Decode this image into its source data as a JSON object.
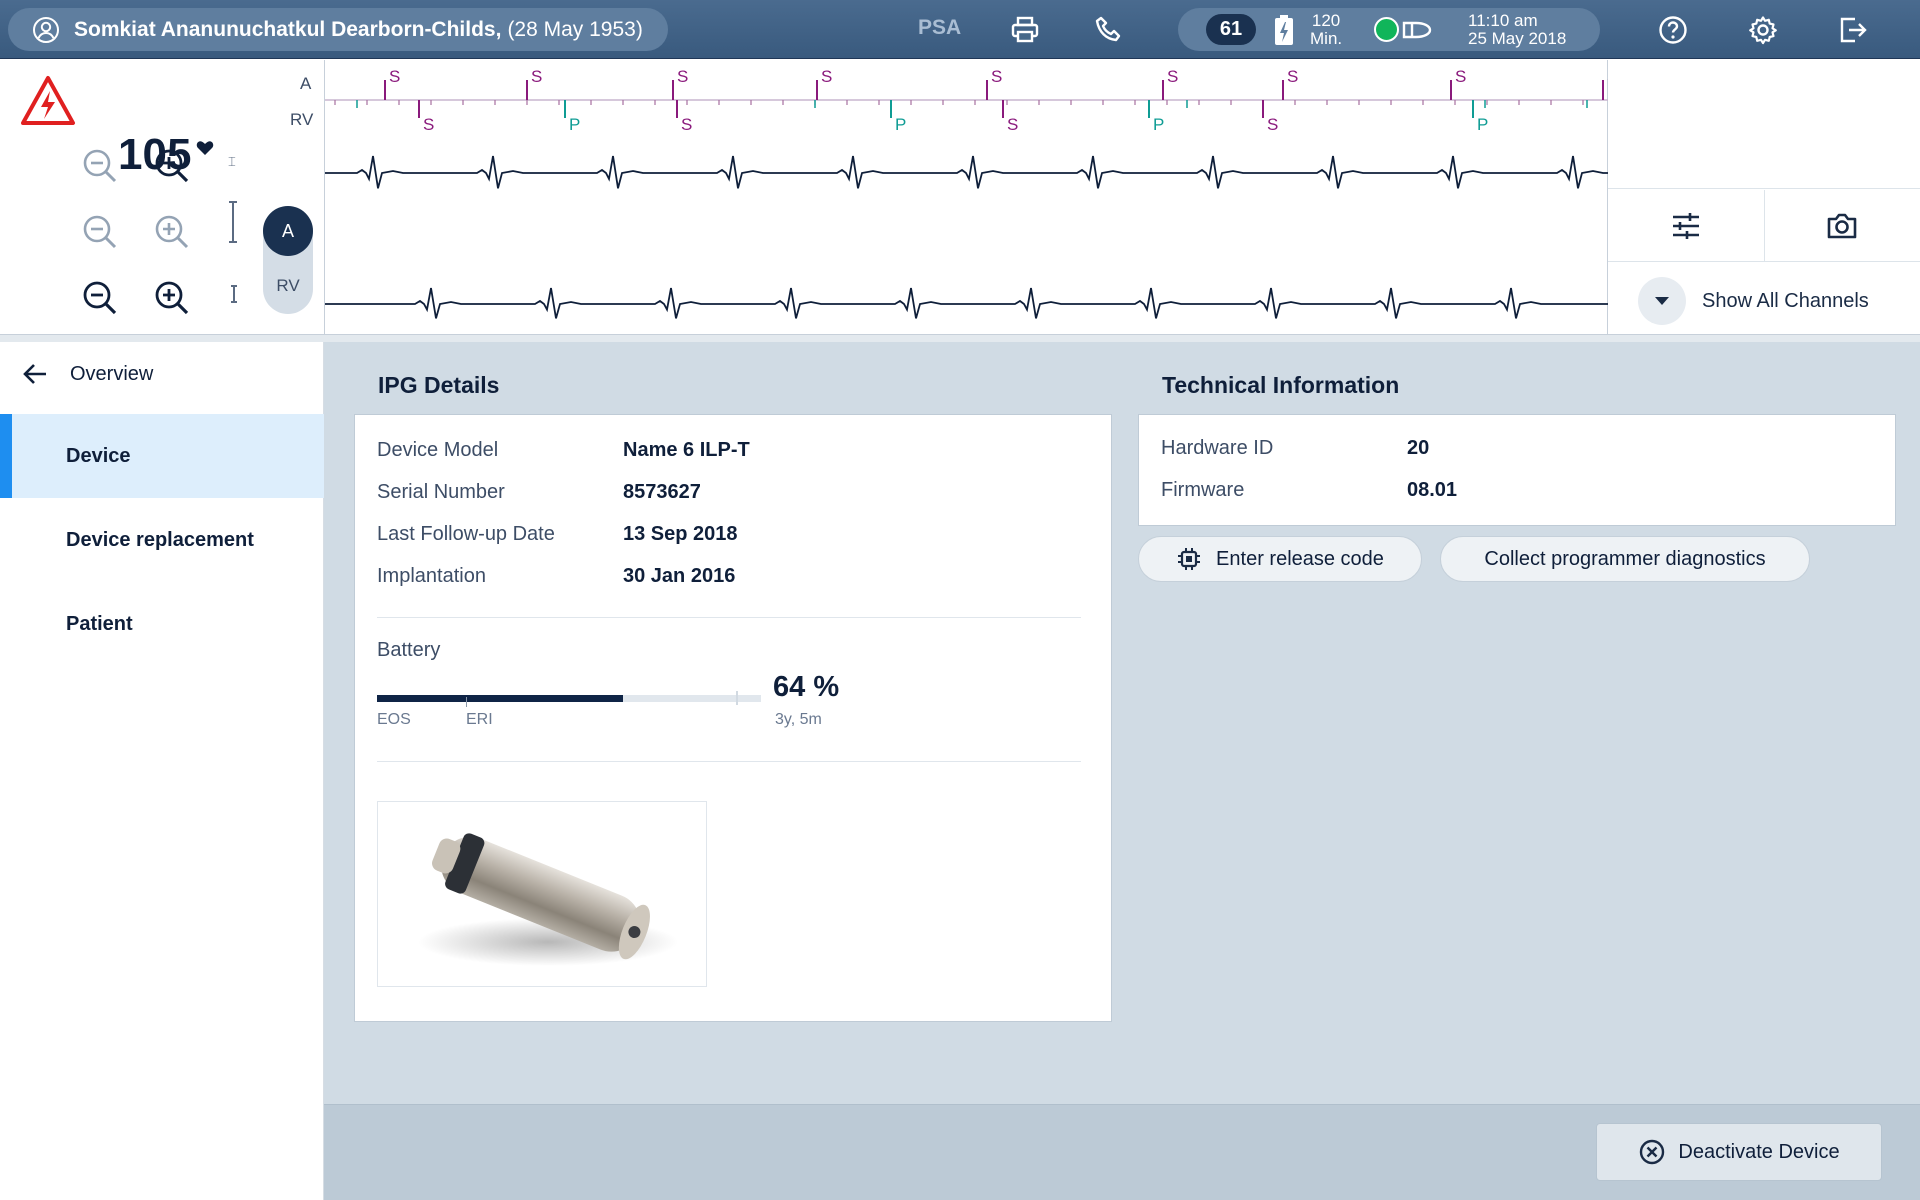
{
  "topbar": {
    "patient_name": "Somkiat Ananunuchatkul Dearborn-Childs,",
    "patient_dob": "(28 May 1953)",
    "psa_label": "PSA",
    "rate": "61",
    "battery_min_value": "120",
    "battery_min_unit": "Min.",
    "time": "11:10 am",
    "date": "25 May 2018"
  },
  "ecg": {
    "heart_rate": "105",
    "channel_a": "A",
    "channel_rv": "RV",
    "channel_i": "I",
    "toggle_a": "A",
    "toggle_rv": "RV",
    "marker_sense": "S",
    "marker_pace": "P",
    "show_all_channels": "Show All Channels"
  },
  "sidebar": {
    "back_label": "Overview",
    "items": [
      {
        "label": "Device"
      },
      {
        "label": "Device replacement"
      },
      {
        "label": "Patient"
      }
    ]
  },
  "ipg": {
    "title": "IPG Details",
    "rows": [
      {
        "label": "Device Model",
        "value": "Name 6 ILP-T"
      },
      {
        "label": "Serial Number",
        "value": "8573627"
      },
      {
        "label": "Last Follow-up Date",
        "value": "13 Sep 2018"
      },
      {
        "label": "Implantation",
        "value": "30 Jan 2016"
      }
    ],
    "battery_label": "Battery",
    "battery_percent_value": 64,
    "battery_percent": "64 %",
    "battery_remaining": "3y, 5m",
    "eos_label": "EOS",
    "eri_label": "ERI"
  },
  "technical": {
    "title": "Technical Information",
    "rows": [
      {
        "label": "Hardware ID",
        "value": "20"
      },
      {
        "label": "Firmware",
        "value": "08.01"
      }
    ],
    "release_code_button": "Enter release code",
    "diagnostics_button": "Collect programmer diagnostics"
  },
  "footer": {
    "deactivate_button": "Deactivate Device"
  },
  "colors": {
    "topbar": "#395a7e",
    "accent": "#1e8ef0",
    "sense_marker": "#8a1a7c",
    "pace_marker": "#0f9c94",
    "ecg_trace": "#0f1f3a"
  }
}
